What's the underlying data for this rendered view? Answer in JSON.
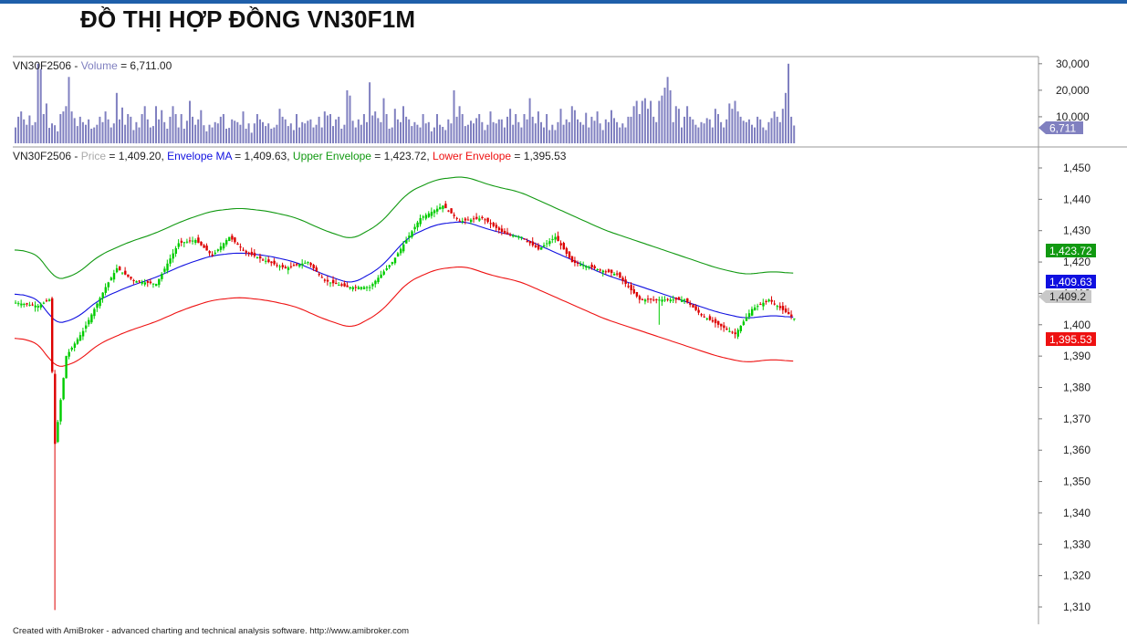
{
  "header": {
    "title": "ĐỒ THỊ HỢP ĐỒNG VN30F1M"
  },
  "footer": {
    "credit": "Created with AmiBroker - advanced charting and technical analysis software. http://www.amibroker.com"
  },
  "colors": {
    "volume": "#8080c0",
    "up": "#00cc00",
    "down": "#dd0000",
    "envelope_ma": "#1010e0",
    "upper_envelope": "#119911",
    "lower_envelope": "#ee1111",
    "price_label": "#aaaaaa"
  },
  "chart_data": [
    {
      "type": "bar",
      "panel": "volume",
      "legend": {
        "symbol": "VN30F2506 - ",
        "series_name": "Volume",
        "value_text": " = 6,711.00"
      },
      "y_ticks": [
        "30,000",
        "20,000",
        "10,000"
      ],
      "y_tick_values": [
        30000,
        20000,
        10000
      ],
      "ylim": [
        0,
        32000
      ],
      "last_value_tag": "6,711",
      "values": [
        6000,
        10000,
        12000,
        9000,
        7000,
        10500,
        6800,
        8000,
        30000,
        28000,
        11000,
        15000,
        5800,
        7500,
        6800,
        4500,
        11000,
        12000,
        14000,
        25000,
        12000,
        9500,
        6500,
        10000,
        8000,
        7000,
        9000,
        5500,
        6000,
        7000,
        10000,
        8000,
        12000,
        9000,
        6000,
        7500,
        19000,
        9000,
        13500,
        7000,
        11000,
        10000,
        5000,
        8000,
        6000,
        11000,
        14000,
        9000,
        6000,
        6500,
        14000,
        9000,
        12500,
        8000,
        5500,
        10000,
        14000,
        11000,
        6000,
        11000,
        5500,
        8500,
        16000,
        10000,
        7000,
        9000,
        12500,
        6800,
        4500,
        7000,
        6000,
        8000,
        7500,
        10000,
        11000,
        5500,
        5800,
        9000,
        8500,
        8000,
        7000,
        12000,
        5500,
        7500,
        4000,
        7500,
        11000,
        9000,
        8000,
        6500,
        7500,
        5500,
        6000,
        7000,
        13000,
        10000,
        9000,
        6500,
        7500,
        5000,
        11000,
        6000,
        8000,
        7500,
        8500,
        9000,
        6000,
        7000,
        10000,
        6000,
        12000,
        10500,
        11000,
        6500,
        9000,
        10000,
        5500,
        7000,
        20000,
        18000,
        8500,
        6000,
        9000,
        7000,
        11000,
        8000,
        23000,
        10500,
        12000,
        9500,
        8000,
        17000,
        11000,
        5500,
        6000,
        13000,
        9000,
        8000,
        14000,
        10000,
        9000,
        6500,
        8000,
        7000,
        6000,
        11000,
        7500,
        8000,
        4500,
        6000,
        11000,
        7000,
        6200,
        5000,
        9000,
        7500,
        20000,
        10000,
        14000,
        11000,
        6500,
        7000,
        8500,
        7500,
        9500,
        11000,
        8000,
        5000,
        7000,
        12000,
        8000,
        7500,
        9000,
        9000,
        6000,
        10000,
        13000,
        7000,
        11000,
        8000,
        6000,
        11000,
        9000,
        17000,
        10000,
        7500,
        12000,
        8000,
        6000,
        11000,
        5000,
        7000,
        5000,
        8000,
        13000,
        7000,
        9000,
        8000,
        14000,
        12500,
        9000,
        8000,
        7000,
        11500,
        6000,
        10000,
        8500,
        12000,
        7500,
        5000,
        9000,
        8000,
        12500,
        9500,
        8000,
        6000,
        7500,
        6000,
        10000,
        10000,
        14000,
        16000,
        11000,
        16000,
        17000,
        13000,
        16000,
        10000,
        8000,
        16000,
        18000,
        21000,
        25000,
        20000,
        8000,
        14000,
        13000,
        6000,
        10000,
        14000,
        10000,
        9000,
        7000,
        6000,
        8000,
        7500,
        9500,
        9000,
        6000,
        13000,
        11000,
        8000,
        6000,
        9000,
        15000,
        13000,
        16000,
        12000,
        10000,
        8500,
        8000,
        9000,
        7000,
        6000,
        10000,
        9000,
        6000,
        5000,
        8000,
        9500,
        12000,
        10000,
        8000,
        13000,
        19000,
        30000,
        10000,
        6711
      ]
    },
    {
      "type": "candlestick",
      "panel": "price",
      "legend": {
        "symbol": "VN30F2506 - ",
        "price_name": "Price",
        "price_value": " = 1,409.20, ",
        "ma_name": "Envelope MA",
        "ma_value": " = 1,409.63, ",
        "upper_name": "Upper Envelope",
        "upper_value": " = 1,423.72, ",
        "lower_name": "Lower Envelope",
        "lower_value": " = 1,395.53"
      },
      "y_ticks": [
        "1,450",
        "1,440",
        "1,430",
        "1,420",
        "1,410",
        "1,400",
        "1,390",
        "1,380",
        "1,370",
        "1,360",
        "1,350",
        "1,340",
        "1,330",
        "1,320",
        "1,310"
      ],
      "y_tick_values": [
        1450,
        1440,
        1430,
        1420,
        1410,
        1400,
        1390,
        1380,
        1370,
        1360,
        1350,
        1340,
        1330,
        1320,
        1310
      ],
      "ylim": [
        1307,
        1456
      ],
      "tags": {
        "upper": "1,423.72",
        "ma": "1,409.63",
        "price": "1,409.2",
        "lower": "1,395.53"
      },
      "anchors": [
        [
          0,
          1407
        ],
        [
          8,
          1406
        ],
        [
          12,
          1408
        ],
        [
          14,
          1362
        ],
        [
          18,
          1390
        ],
        [
          24,
          1398
        ],
        [
          32,
          1412
        ],
        [
          36,
          1418
        ],
        [
          42,
          1414
        ],
        [
          50,
          1413
        ],
        [
          58,
          1426
        ],
        [
          64,
          1427
        ],
        [
          70,
          1422
        ],
        [
          76,
          1428
        ],
        [
          82,
          1423
        ],
        [
          90,
          1420
        ],
        [
          96,
          1418
        ],
        [
          104,
          1420
        ],
        [
          110,
          1414
        ],
        [
          118,
          1412
        ],
        [
          126,
          1412
        ],
        [
          134,
          1420
        ],
        [
          144,
          1434
        ],
        [
          152,
          1438
        ],
        [
          158,
          1433
        ],
        [
          166,
          1434
        ],
        [
          174,
          1429
        ],
        [
          180,
          1428
        ],
        [
          186,
          1424
        ],
        [
          192,
          1428
        ],
        [
          198,
          1420
        ],
        [
          206,
          1418
        ],
        [
          214,
          1416
        ],
        [
          222,
          1408
        ],
        [
          230,
          1408
        ],
        [
          238,
          1408
        ],
        [
          244,
          1403
        ],
        [
          250,
          1400
        ],
        [
          256,
          1397
        ],
        [
          262,
          1405
        ],
        [
          268,
          1408
        ],
        [
          274,
          1404
        ],
        [
          280,
          1400
        ],
        [
          288,
          1400
        ],
        [
          294,
          1400
        ],
        [
          302,
          1400
        ],
        [
          308,
          1415
        ],
        [
          314,
          1418
        ],
        [
          320,
          1418
        ],
        [
          326,
          1412
        ],
        [
          332,
          1414
        ],
        [
          338,
          1408
        ],
        [
          342,
          1406
        ],
        [
          346,
          1409.2
        ]
      ],
      "ma_anchors": [
        [
          0,
          1410
        ],
        [
          6,
          1409
        ],
        [
          10,
          1407
        ],
        [
          14,
          1400
        ],
        [
          22,
          1402
        ],
        [
          30,
          1408
        ],
        [
          40,
          1412
        ],
        [
          50,
          1415
        ],
        [
          60,
          1419
        ],
        [
          70,
          1422
        ],
        [
          80,
          1423
        ],
        [
          90,
          1422
        ],
        [
          100,
          1420
        ],
        [
          110,
          1416
        ],
        [
          120,
          1413
        ],
        [
          130,
          1418
        ],
        [
          140,
          1428
        ],
        [
          150,
          1432
        ],
        [
          160,
          1433
        ],
        [
          170,
          1430
        ],
        [
          180,
          1428
        ],
        [
          190,
          1424
        ],
        [
          200,
          1420
        ],
        [
          210,
          1416
        ],
        [
          220,
          1413
        ],
        [
          230,
          1410
        ],
        [
          240,
          1407
        ],
        [
          250,
          1404
        ],
        [
          260,
          1402
        ],
        [
          270,
          1403
        ],
        [
          280,
          1402
        ],
        [
          290,
          1400
        ],
        [
          300,
          1399
        ],
        [
          308,
          1400
        ],
        [
          316,
          1405
        ],
        [
          324,
          1410
        ],
        [
          332,
          1414
        ],
        [
          340,
          1413
        ],
        [
          346,
          1409.63
        ]
      ]
    }
  ]
}
